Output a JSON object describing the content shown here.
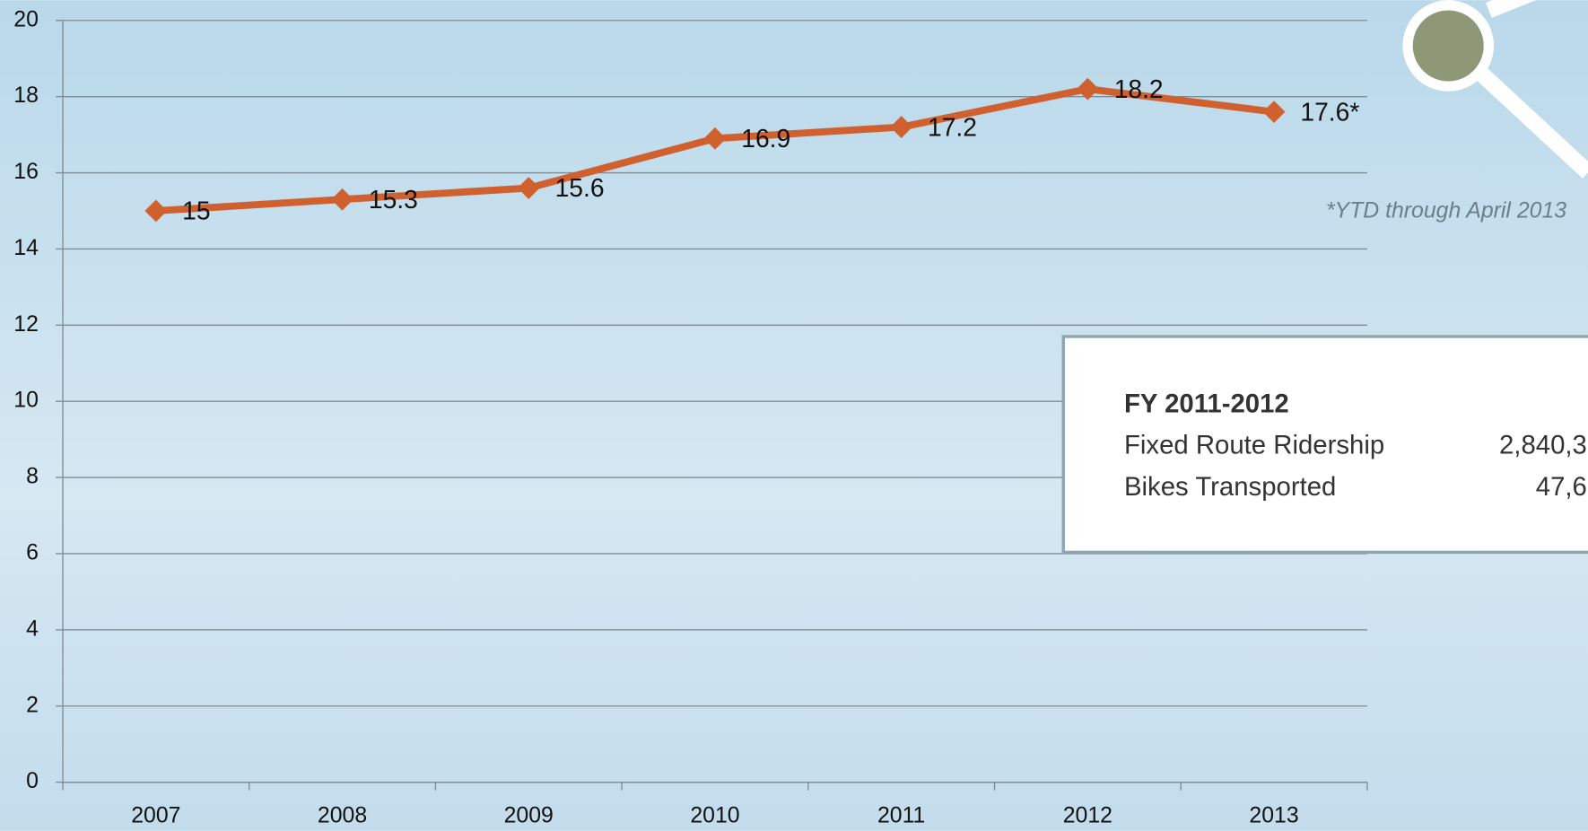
{
  "chart_data": {
    "type": "line",
    "categories": [
      "2007",
      "2008",
      "2009",
      "2010",
      "2011",
      "2012",
      "2013"
    ],
    "values": [
      15,
      15.3,
      15.6,
      16.9,
      17.2,
      18.2,
      17.6
    ],
    "value_labels": [
      "15",
      "15.3",
      "15.6",
      "16.9",
      "17.2",
      "18.2",
      "17.6*"
    ],
    "color": "#d0612f",
    "ylim": [
      0,
      20
    ],
    "yticks": [
      0,
      2,
      4,
      6,
      8,
      10,
      12,
      14,
      16,
      18,
      20
    ],
    "grid": true,
    "annotation": "*YTD through April 2013",
    "info_box": {
      "title": "FY 2011-2012",
      "rows": [
        [
          "Fixed Route Ridership",
          "2,840,3"
        ],
        [
          "Bikes Transported",
          "47,6"
        ]
      ]
    }
  }
}
